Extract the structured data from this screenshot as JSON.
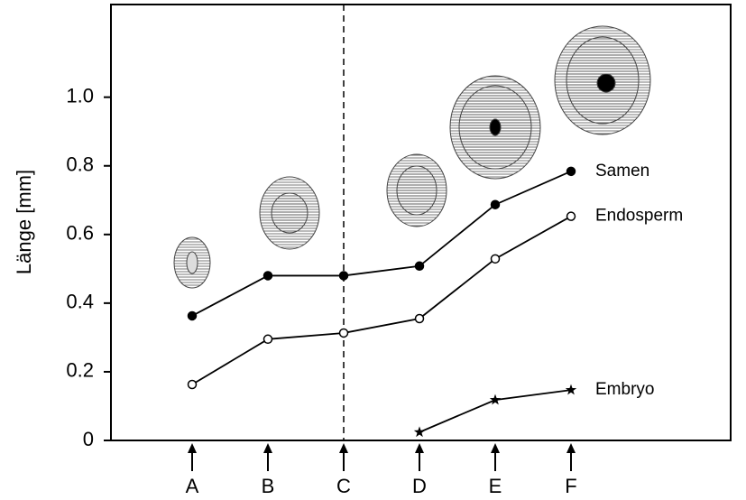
{
  "chart_data": {
    "type": "line",
    "y_label": "Länge [mm]",
    "categories": [
      "A",
      "B",
      "C",
      "D",
      "E",
      "F"
    ],
    "series": [
      {
        "name": "Samen",
        "color": "#000000",
        "marker": "filled-circle",
        "values": [
          0.363,
          0.48,
          0.48,
          0.508,
          0.687,
          0.784
        ]
      },
      {
        "name": "Endosperm",
        "color": "#000000",
        "marker": "open-circle",
        "values": [
          0.163,
          0.295,
          0.313,
          0.355,
          0.529,
          0.653
        ]
      },
      {
        "name": "Embryo",
        "color": "#000000",
        "marker": "star",
        "values": [
          null,
          null,
          null,
          0.024,
          0.118,
          0.147
        ]
      }
    ],
    "ylim": [
      0,
      1.27
    ],
    "yticks": [
      0,
      0.2,
      0.4,
      0.6,
      0.8,
      {
        "value": 1,
        "label": "1.0"
      }
    ]
  }
}
